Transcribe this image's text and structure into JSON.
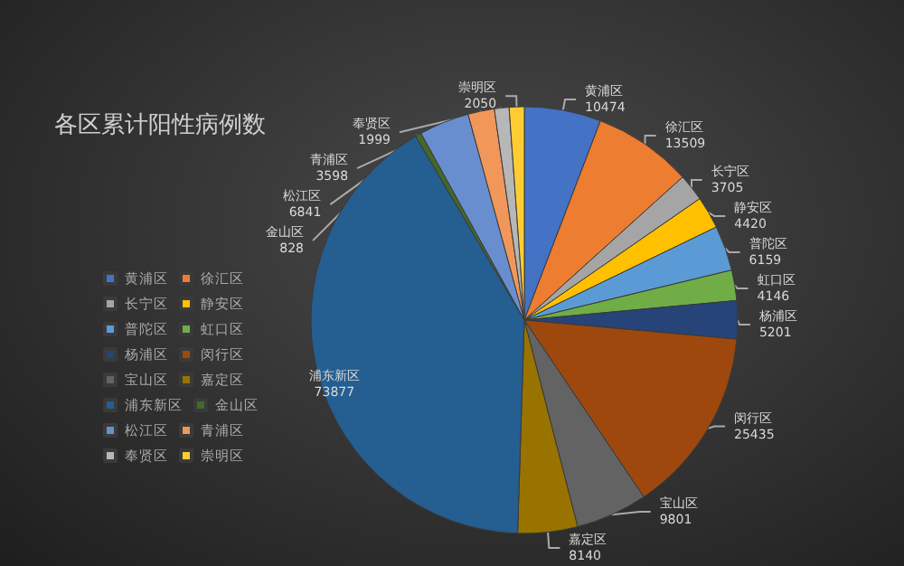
{
  "chart_data": {
    "type": "pie",
    "title": "各区累计阳性病例数",
    "categories": [
      "黄浦区",
      "徐汇区",
      "长宁区",
      "静安区",
      "普陀区",
      "虹口区",
      "杨浦区",
      "闵行区",
      "宝山区",
      "嘉定区",
      "浦东新区",
      "金山区",
      "松江区",
      "青浦区",
      "奉贤区",
      "崇明区"
    ],
    "values": [
      10474,
      13509,
      3705,
      4420,
      6159,
      4146,
      5201,
      25435,
      9801,
      8140,
      73877,
      828,
      6841,
      3598,
      1999,
      2050
    ],
    "colors": [
      "#4472c4",
      "#ed7d31",
      "#a5a5a5",
      "#ffc000",
      "#5b9bd5",
      "#70ad47",
      "#264478",
      "#9e480e",
      "#636363",
      "#997300",
      "#255e91",
      "#43682b",
      "#698ed0",
      "#f1975a",
      "#b7b7b7",
      "#ffcd33"
    ],
    "data_labels": true,
    "legend": "left"
  }
}
